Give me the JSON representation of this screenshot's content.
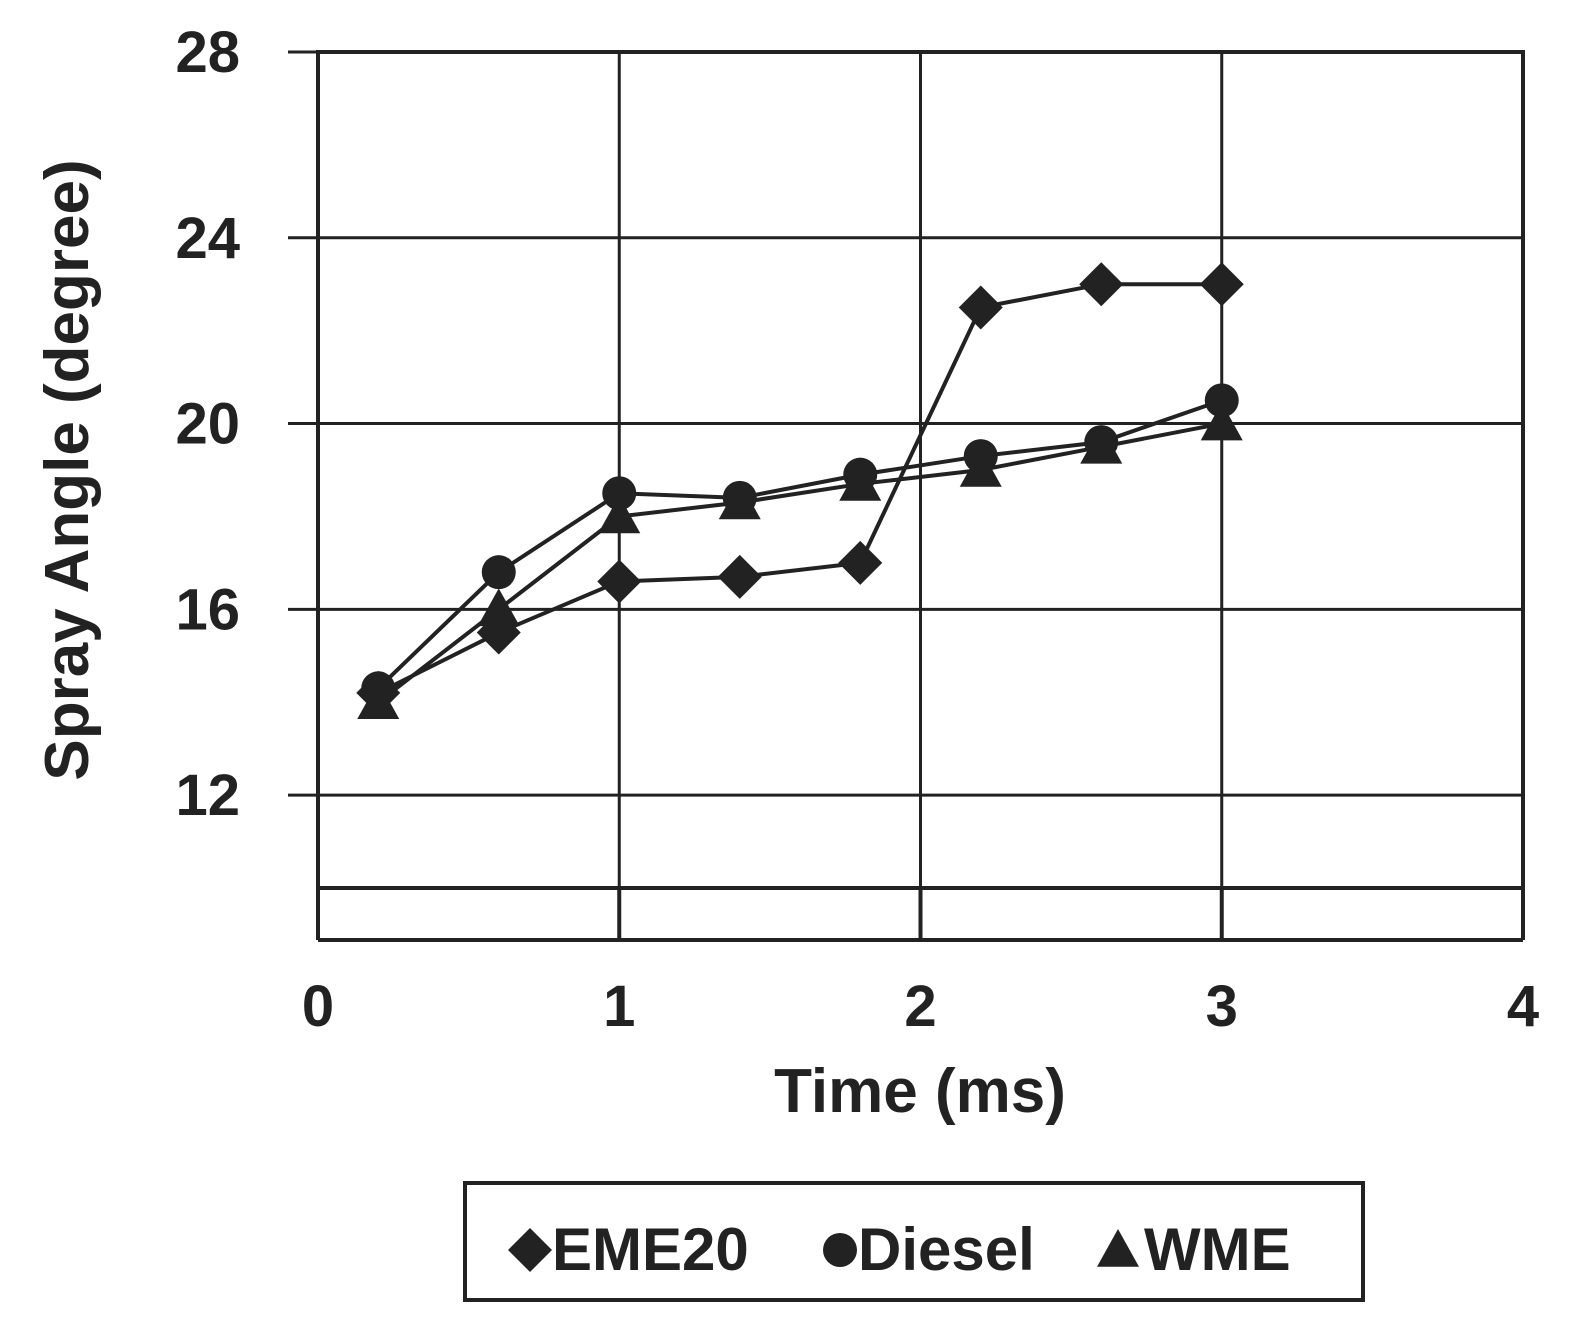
{
  "chart_data": {
    "type": "line",
    "title": "",
    "xlabel": "Time (ms)",
    "ylabel": "Spray Angle (degree)",
    "xlim": [
      0,
      4
    ],
    "ylim": [
      10,
      28
    ],
    "xticks": [
      0,
      1,
      2,
      3,
      4
    ],
    "yticks": [
      12,
      16,
      20,
      24,
      28
    ],
    "grid": true,
    "legend_position": "bottom",
    "line_color": "#222222",
    "series": [
      {
        "name": "EME20",
        "marker": "diamond",
        "x": [
          0.2,
          0.6,
          1.0,
          1.4,
          1.8,
          2.2,
          2.6,
          3.0
        ],
        "y": [
          14.2,
          15.5,
          16.6,
          16.7,
          17.0,
          22.5,
          23.0,
          23.0
        ]
      },
      {
        "name": "Diesel",
        "marker": "circle",
        "x": [
          0.2,
          0.6,
          1.0,
          1.4,
          1.8,
          2.2,
          2.6,
          3.0
        ],
        "y": [
          14.3,
          16.8,
          18.5,
          18.4,
          18.9,
          19.3,
          19.6,
          20.5
        ]
      },
      {
        "name": "WME",
        "marker": "triangle",
        "x": [
          0.2,
          0.6,
          1.0,
          1.4,
          1.8,
          2.2,
          2.6,
          3.0
        ],
        "y": [
          14.0,
          16.0,
          18.0,
          18.3,
          18.7,
          19.0,
          19.5,
          20.0
        ]
      }
    ]
  }
}
